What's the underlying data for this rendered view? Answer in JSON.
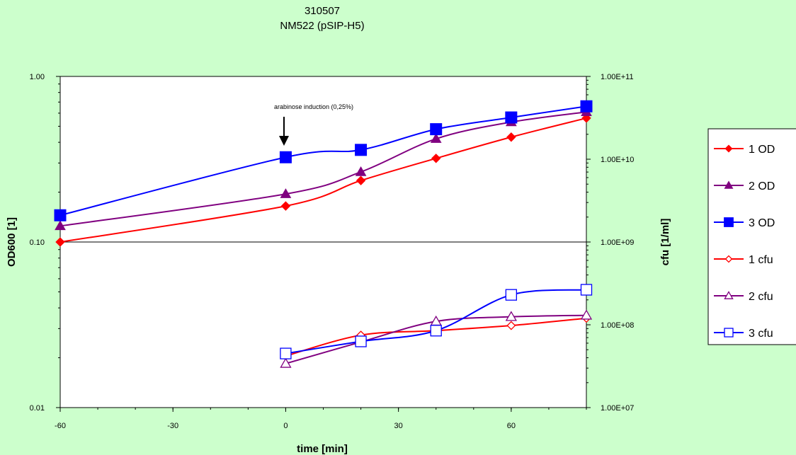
{
  "chart_data": {
    "type": "line",
    "title_lines": [
      "310507",
      "NM522 (pSIP-H5)"
    ],
    "xlabel": "time [min]",
    "ylabel_left": "OD600 [1]",
    "ylabel_right": "cfu [1/ml]",
    "xlim": [
      -60,
      80
    ],
    "ylim_left": [
      0.01,
      1.0
    ],
    "ylim_right": [
      10000000,
      100000000000
    ],
    "y_scale": "log",
    "x_ticks": [
      -60,
      -30,
      0,
      30,
      60
    ],
    "x_tick_labels": [
      "-60",
      "-30",
      "0",
      "30",
      "60"
    ],
    "y_left_ticks": [
      0.01,
      0.1,
      1.0
    ],
    "y_left_tick_labels": [
      "0.01",
      "0.10",
      "1.00"
    ],
    "y_right_ticks": [
      10000000,
      100000000,
      1000000000,
      10000000000,
      100000000000
    ],
    "y_right_tick_labels": [
      "1.00E+07",
      "1.00E+08",
      "1.00E+09",
      "1.00E+10",
      "1.00E+11"
    ],
    "annotation": {
      "text": "arabinose induction (0,25%)",
      "x": 0
    },
    "legend_position": "right",
    "series": [
      {
        "name": "1 OD",
        "axis": "left",
        "color": "#ff0000",
        "marker": "diamond",
        "filled": true,
        "x": [
          -60,
          0,
          20,
          40,
          60,
          80
        ],
        "y": [
          0.1,
          0.165,
          0.235,
          0.32,
          0.43,
          0.56
        ]
      },
      {
        "name": "2 OD",
        "axis": "left",
        "color": "#800080",
        "marker": "triangle",
        "filled": true,
        "x": [
          -60,
          0,
          20,
          40,
          60,
          80
        ],
        "y": [
          0.125,
          0.195,
          0.265,
          0.42,
          0.53,
          0.61
        ]
      },
      {
        "name": "3 OD",
        "axis": "left",
        "color": "#0000ff",
        "marker": "square",
        "filled": true,
        "x": [
          -60,
          0,
          20,
          40,
          60,
          80
        ],
        "y": [
          0.145,
          0.325,
          0.36,
          0.48,
          0.565,
          0.66
        ]
      },
      {
        "name": "1 cfu",
        "axis": "right",
        "color": "#ff0000",
        "marker": "diamond",
        "filled": false,
        "x": [
          0,
          20,
          40,
          60,
          80
        ],
        "y": [
          42000000,
          75000000,
          85000000,
          98000000,
          120000000
        ]
      },
      {
        "name": "2 cfu",
        "axis": "right",
        "color": "#800080",
        "marker": "triangle",
        "filled": false,
        "x": [
          0,
          20,
          40,
          60,
          80
        ],
        "y": [
          34000000,
          62000000,
          110000000,
          125000000,
          130000000
        ]
      },
      {
        "name": "3 cfu",
        "axis": "right",
        "color": "#0000ff",
        "marker": "square",
        "filled": false,
        "x": [
          0,
          20,
          40,
          60,
          80
        ],
        "y": [
          45000000,
          63000000,
          85000000,
          230000000,
          265000000
        ]
      }
    ]
  }
}
